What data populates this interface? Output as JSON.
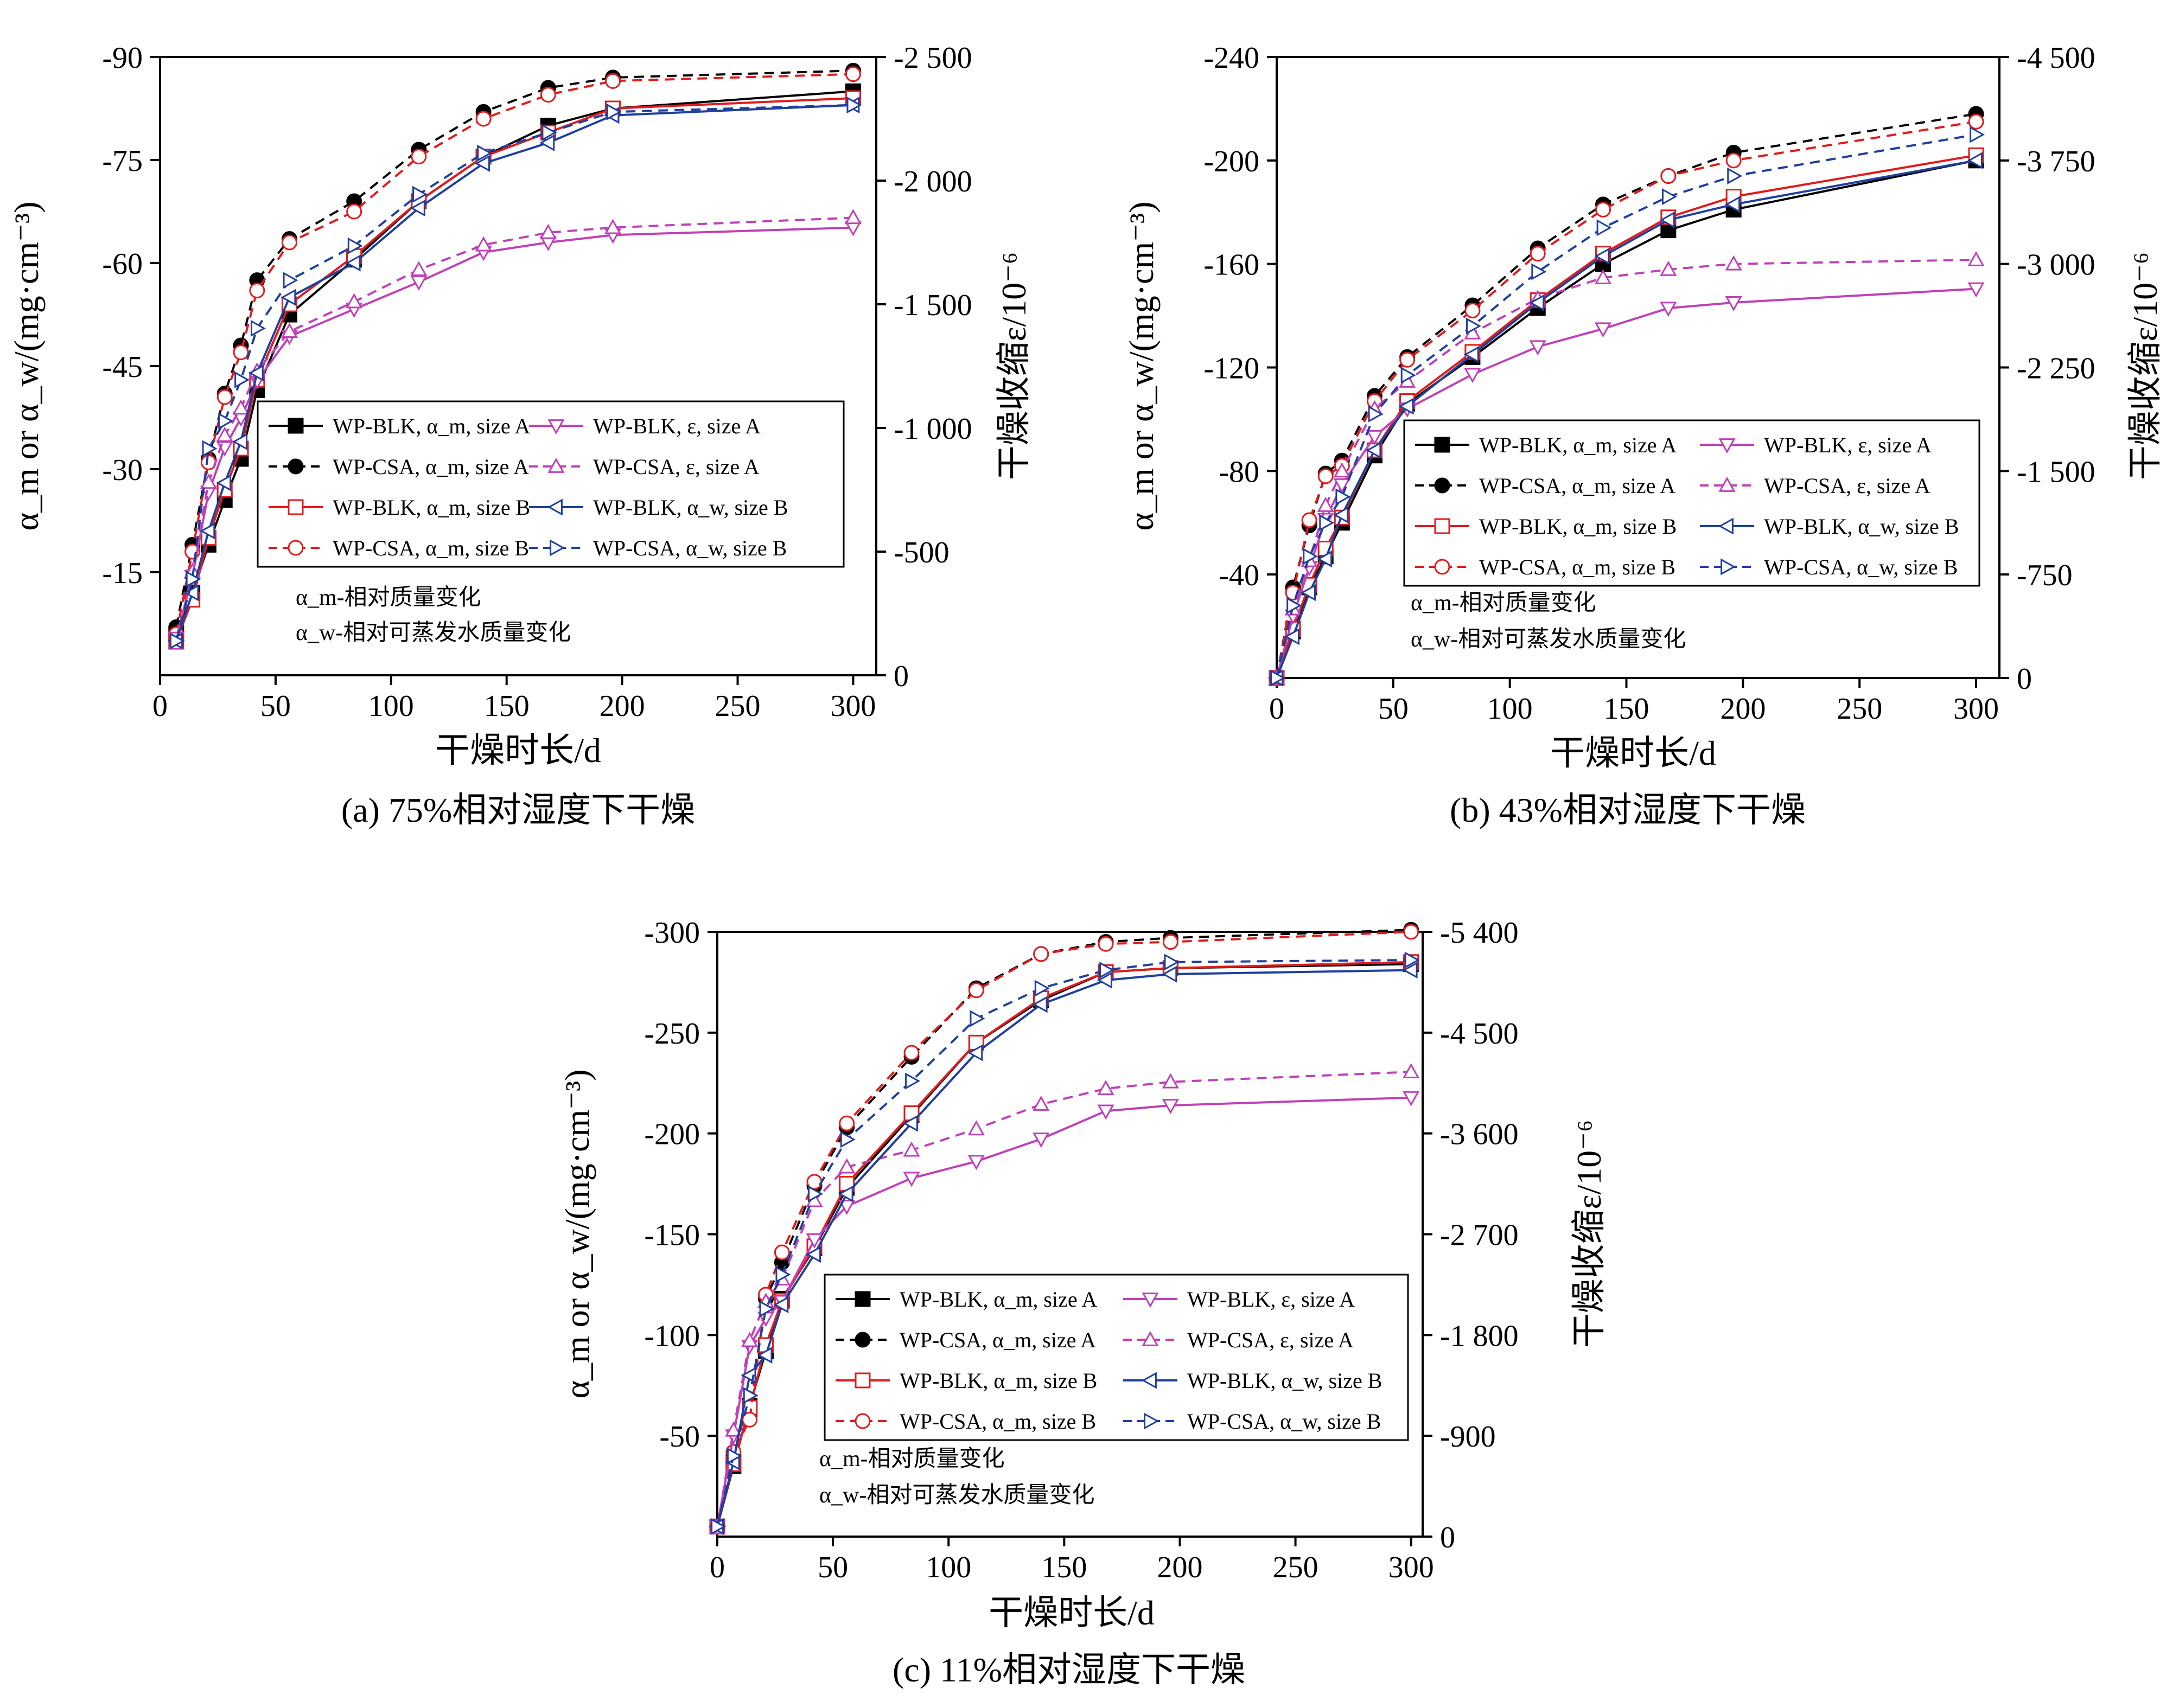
{
  "figure": {
    "xlabel": "干燥时长/d",
    "ylabel_left": "α_m or α_w/(mg·cm⁻³)",
    "ylabel_right": "干燥收缩ε/10⁻⁶",
    "notes": [
      "α_m-相对质量变化",
      "α_w-相对可蒸发水质量变化"
    ]
  },
  "series_styles": [
    {
      "name": "WP-BLK, α_m, size A",
      "color": "#000000",
      "dash": "solid",
      "marker": "square-filled"
    },
    {
      "name": "WP-CSA, α_m, size A",
      "color": "#000000",
      "dash": "dashed",
      "marker": "circle-filled"
    },
    {
      "name": "WP-BLK, α_m, size B",
      "color": "#e31a1c",
      "dash": "solid",
      "marker": "square-open"
    },
    {
      "name": "WP-CSA, α_m, size B",
      "color": "#e31a1c",
      "dash": "dashed",
      "marker": "circle-open"
    },
    {
      "name": "WP-BLK, ε, size A",
      "color": "#c040b8",
      "dash": "solid",
      "marker": "triangle-down-open"
    },
    {
      "name": "WP-CSA, ε, size A",
      "color": "#c040b8",
      "dash": "dashed",
      "marker": "triangle-up-open"
    },
    {
      "name": "WP-BLK, α_w, size B",
      "color": "#1f3f9f",
      "dash": "solid",
      "marker": "triangle-left-open"
    },
    {
      "name": "WP-CSA, α_w, size B",
      "color": "#1f3f9f",
      "dash": "dashed",
      "marker": "triangle-right-open"
    }
  ],
  "chart_data": [
    {
      "type": "line",
      "caption": "(a) 75%相对湿度下干燥",
      "x_ticks": [
        0,
        50,
        100,
        150,
        200,
        250,
        300
      ],
      "xlim": [
        0,
        310
      ],
      "y_left_ticks": [
        -90,
        -75,
        -60,
        -45,
        -30,
        -15
      ],
      "ylim_left": [
        0,
        -90
      ],
      "y_right_ticks": [
        -2500,
        -2000,
        -1500,
        -1000,
        -500,
        0
      ],
      "y_right_tick_labels": [
        "-2 500",
        "-2 000",
        "-1 500",
        "-1 000",
        "-500",
        "0"
      ],
      "ylim_right": [
        0,
        -2500
      ],
      "x": [
        7,
        14,
        21,
        28,
        35,
        42,
        56,
        84,
        112,
        140,
        168,
        196,
        300
      ],
      "series": [
        {
          "name": "WP-BLK, α_m, size A",
          "axis": "left",
          "values": [
            -6,
            -12,
            -19,
            -25.5,
            -31.5,
            -41.5,
            -52.5,
            -60.5,
            -69,
            -75.5,
            -80,
            -82.5,
            -85
          ]
        },
        {
          "name": "WP-CSA, α_m, size A",
          "axis": "left",
          "values": [
            -7,
            -19,
            -31.5,
            -41,
            -48,
            -57.5,
            -63.5,
            -69,
            -76.5,
            -82,
            -85.5,
            -87,
            -88
          ]
        },
        {
          "name": "WP-BLK, α_m, size B",
          "axis": "left",
          "values": [
            -5,
            -11,
            -20,
            -27,
            -33,
            -43,
            -54,
            -61,
            -69,
            -75.5,
            -79,
            -82.5,
            -84
          ]
        },
        {
          "name": "WP-CSA, α_m, size B",
          "axis": "left",
          "values": [
            -6,
            -18,
            -31,
            -40.5,
            -47,
            -56,
            -63,
            -67.5,
            -75.5,
            -81,
            -84.5,
            -86.5,
            -87.5
          ]
        },
        {
          "name": "WP-BLK, ε, size A",
          "axis": "right",
          "values": [
            -150,
            -400,
            -740,
            -920,
            -1040,
            -1190,
            -1370,
            -1480,
            -1590,
            -1710,
            -1750,
            -1780,
            -1810
          ]
        },
        {
          "name": "WP-CSA, ε, size A",
          "axis": "right",
          "values": [
            -130,
            -420,
            -780,
            -970,
            -1080,
            -1230,
            -1390,
            -1510,
            -1640,
            -1740,
            -1790,
            -1810,
            -1850
          ]
        },
        {
          "name": "WP-BLK, α_w, size B",
          "axis": "left",
          "values": [
            -5,
            -12,
            -21,
            -28,
            -34,
            -44,
            -55,
            -60,
            -68,
            -74.5,
            -77.5,
            -81.5,
            -83
          ]
        },
        {
          "name": "WP-CSA, α_w, size B",
          "axis": "left",
          "values": [
            -5,
            -14,
            -33,
            -37,
            -43,
            -50.5,
            -57.5,
            -62.5,
            -70,
            -76,
            -79,
            -82,
            -83
          ]
        }
      ]
    },
    {
      "type": "line",
      "caption": "(b) 43%相对湿度下干燥",
      "x_ticks": [
        0,
        50,
        100,
        150,
        200,
        250,
        300
      ],
      "xlim": [
        0,
        310
      ],
      "y_left_ticks": [
        -240,
        -200,
        -160,
        -120,
        -80,
        -40
      ],
      "ylim_left": [
        0,
        -240
      ],
      "y_right_ticks": [
        -4500,
        -3750,
        -3000,
        -2250,
        -1500,
        -750,
        0
      ],
      "y_right_tick_labels": [
        "-4 500",
        "-3 750",
        "-3 000",
        "-2 250",
        "-1 500",
        "-750",
        "0"
      ],
      "ylim_right": [
        0,
        -4500
      ],
      "x": [
        0,
        7,
        14,
        21,
        28,
        42,
        56,
        84,
        112,
        140,
        168,
        196,
        300
      ],
      "series": [
        {
          "name": "WP-BLK, α_m, size A",
          "axis": "left",
          "values": [
            0,
            -18,
            -35,
            -47,
            -60,
            -86,
            -106,
            -124,
            -143,
            -160,
            -173,
            -181,
            -200
          ]
        },
        {
          "name": "WP-CSA, α_m, size A",
          "axis": "left",
          "values": [
            0,
            -35,
            -59,
            -79,
            -84,
            -109,
            -124,
            -144,
            -166,
            -183,
            -194,
            -203,
            -218
          ]
        },
        {
          "name": "WP-BLK, α_m, size B",
          "axis": "left",
          "values": [
            0,
            -19,
            -36,
            -50,
            -62,
            -88,
            -107,
            -126,
            -146,
            -164,
            -178,
            -186,
            -202
          ]
        },
        {
          "name": "WP-CSA, α_m, size B",
          "axis": "left",
          "values": [
            0,
            -33,
            -61,
            -78,
            -82,
            -107,
            -123,
            -142,
            -164,
            -181,
            -194,
            -200,
            -215
          ]
        },
        {
          "name": "WP-BLK, ε, size A",
          "axis": "right",
          "values": [
            0,
            -450,
            -800,
            -1150,
            -1400,
            -1750,
            -1950,
            -2200,
            -2400,
            -2530,
            -2680,
            -2720,
            -2820
          ]
        },
        {
          "name": "WP-CSA, ε, size A",
          "axis": "right",
          "values": [
            0,
            -500,
            -850,
            -1250,
            -1500,
            -1950,
            -2150,
            -2500,
            -2750,
            -2900,
            -2960,
            -3000,
            -3030
          ]
        },
        {
          "name": "WP-BLK, α_w, size B",
          "axis": "left",
          "values": [
            0,
            -16,
            -33,
            -46,
            -63,
            -88,
            -105,
            -125,
            -145,
            -163,
            -177,
            -183,
            -200
          ]
        },
        {
          "name": "WP-CSA, α_w, size B",
          "axis": "left",
          "values": [
            0,
            -28,
            -47,
            -60,
            -70,
            -102,
            -117,
            -136,
            -157,
            -174,
            -186,
            -194,
            -210
          ]
        }
      ]
    },
    {
      "type": "line",
      "caption": "(c) 11%相对湿度下干燥",
      "x_ticks": [
        0,
        50,
        100,
        150,
        200,
        250,
        300
      ],
      "xlim": [
        0,
        305
      ],
      "y_left_ticks": [
        -300,
        -250,
        -200,
        -150,
        -100,
        -50
      ],
      "ylim_left": [
        0,
        -300
      ],
      "y_right_ticks": [
        -5400,
        -4500,
        -3600,
        -2700,
        -1800,
        -900,
        0
      ],
      "y_right_tick_labels": [
        "-5 400",
        "-4 500",
        "-3 600",
        "-2 700",
        "-1 800",
        "-900",
        "0"
      ],
      "ylim_right": [
        0,
        -5400
      ],
      "x": [
        0,
        7,
        14,
        21,
        28,
        42,
        56,
        84,
        112,
        140,
        168,
        196,
        300
      ],
      "series": [
        {
          "name": "WP-BLK, α_m, size A",
          "axis": "left",
          "values": [
            -5,
            -35,
            -65,
            -92,
            -118,
            -143,
            -173,
            -209,
            -245,
            -266,
            -280,
            -282,
            -284
          ]
        },
        {
          "name": "WP-CSA, α_m, size A",
          "axis": "left",
          "values": [
            -5,
            -40,
            -60,
            -118,
            -136,
            -174,
            -203,
            -238,
            -272,
            -289,
            -295,
            -297,
            -301
          ]
        },
        {
          "name": "WP-BLK, α_m, size B",
          "axis": "left",
          "values": [
            -5,
            -36,
            -64,
            -95,
            -117,
            -144,
            -175,
            -210,
            -245,
            -267,
            -280,
            -282,
            -285
          ]
        },
        {
          "name": "WP-CSA, α_m, size B",
          "axis": "left",
          "values": [
            -5,
            -42,
            -58,
            -120,
            -141,
            -176,
            -205,
            -240,
            -271,
            -289,
            -294,
            -295,
            -300
          ]
        },
        {
          "name": "WP-BLK, ε, size A",
          "axis": "right",
          "values": [
            -90,
            -900,
            -1700,
            -1950,
            -2100,
            -2650,
            -2950,
            -3200,
            -3350,
            -3550,
            -3800,
            -3850,
            -3920
          ]
        },
        {
          "name": "WP-CSA, ε, size A",
          "axis": "right",
          "values": [
            -80,
            -950,
            -1750,
            -2100,
            -2300,
            -3000,
            -3300,
            -3450,
            -3640,
            -3860,
            -4000,
            -4060,
            -4150
          ]
        },
        {
          "name": "WP-BLK, α_w, size B",
          "axis": "left",
          "values": [
            -5,
            -37,
            -80,
            -90,
            -115,
            -140,
            -170,
            -205,
            -240,
            -264,
            -276,
            -279,
            -281
          ]
        },
        {
          "name": "WP-CSA, α_w, size B",
          "axis": "left",
          "values": [
            -5,
            -40,
            -70,
            -113,
            -130,
            -170,
            -197,
            -226,
            -257,
            -272,
            -281,
            -285,
            -286
          ]
        }
      ]
    }
  ]
}
